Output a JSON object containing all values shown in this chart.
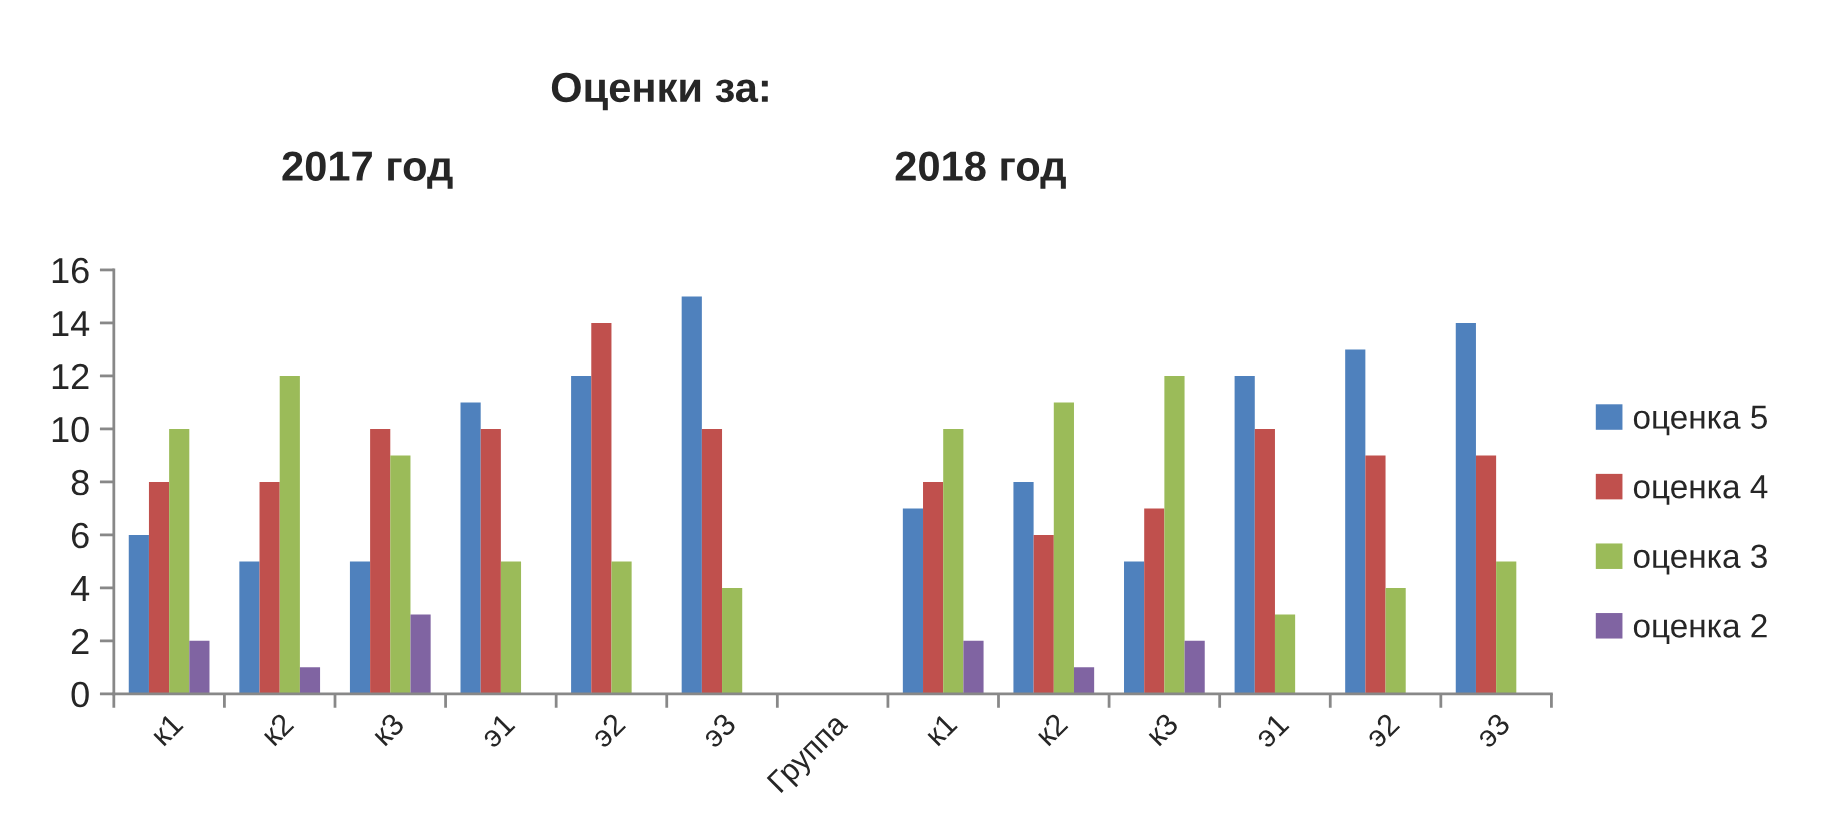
{
  "chart_data": {
    "type": "bar",
    "title": "Оценки за:",
    "annotations": [
      "2017 год",
      "2018 год"
    ],
    "categories": [
      "к1",
      "к2",
      "к3",
      "э1",
      "э2",
      "э3",
      "Группа",
      "к1",
      "к2",
      "к3",
      "э1",
      "э2",
      "э3"
    ],
    "series": [
      {
        "name": "оценка 5",
        "color": "#4f81bd",
        "values": [
          6,
          5,
          5,
          11,
          12,
          15,
          null,
          7,
          8,
          5,
          12,
          13,
          14
        ]
      },
      {
        "name": "оценка 4",
        "color": "#c0504d",
        "values": [
          8,
          8,
          10,
          10,
          14,
          10,
          null,
          8,
          6,
          7,
          10,
          9,
          9
        ]
      },
      {
        "name": "оценка 3",
        "color": "#9bbb59",
        "values": [
          10,
          12,
          9,
          5,
          5,
          4,
          null,
          10,
          11,
          12,
          3,
          4,
          5
        ]
      },
      {
        "name": "оценка 2",
        "color": "#8064a2",
        "values": [
          2,
          1,
          3,
          null,
          null,
          null,
          null,
          2,
          1,
          2,
          null,
          null,
          null
        ]
      }
    ],
    "ylim": [
      0,
      16
    ],
    "yticks": [
      0,
      2,
      4,
      6,
      8,
      10,
      12,
      14,
      16
    ],
    "grid": false,
    "legend": "right"
  }
}
